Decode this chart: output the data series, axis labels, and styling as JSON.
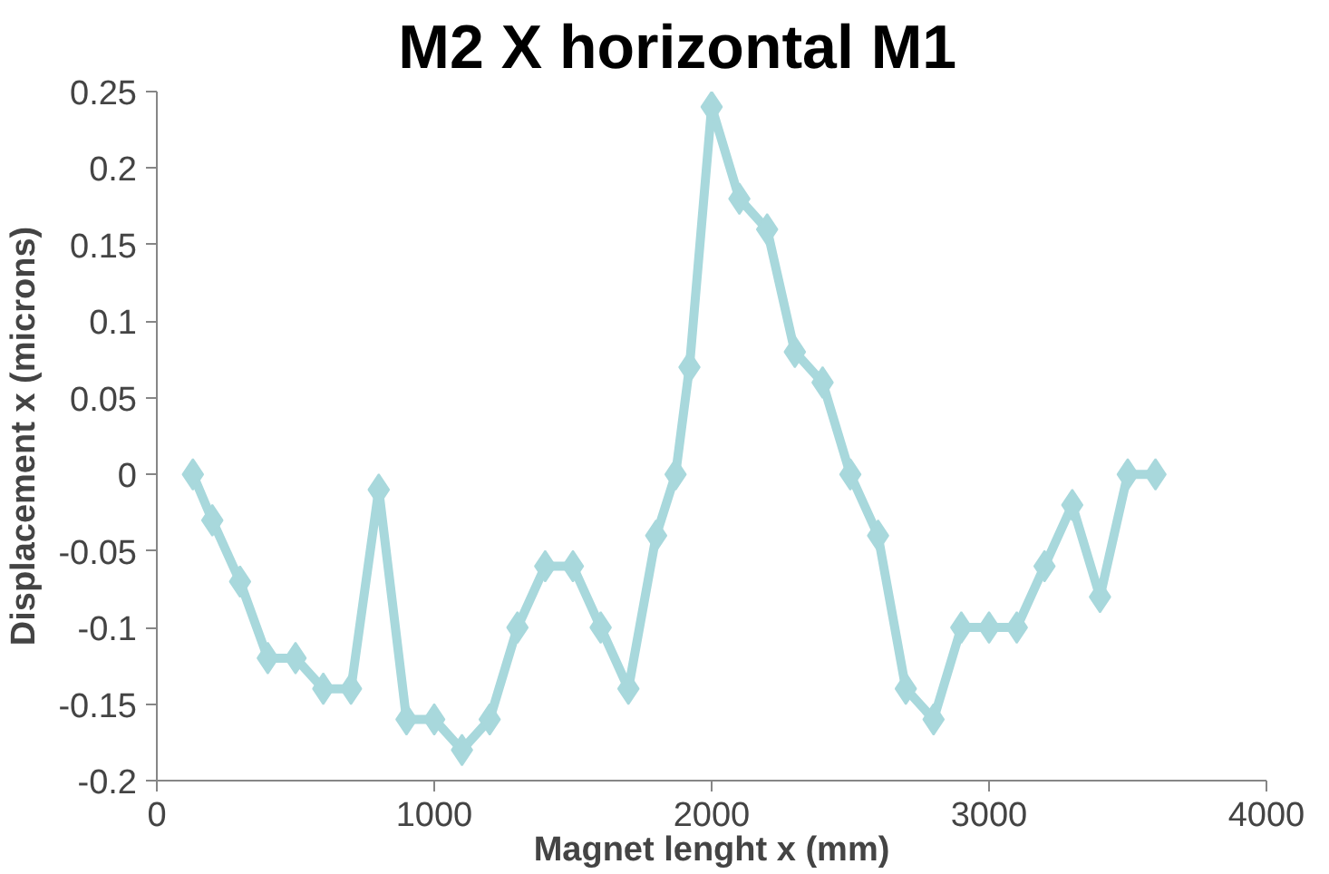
{
  "chart_data": {
    "type": "line",
    "title": "M2   X horizontal   M1",
    "xlabel": "Magnet lenght x (mm)",
    "ylabel": "Displacement x (microns)",
    "x": [
      130,
      200,
      300,
      400,
      500,
      600,
      700,
      800,
      900,
      1000,
      1100,
      1200,
      1300,
      1400,
      1500,
      1600,
      1700,
      1800,
      1870,
      1920,
      2000,
      2100,
      2200,
      2300,
      2400,
      2500,
      2600,
      2700,
      2800,
      2900,
      3000,
      3100,
      3200,
      3300,
      3400,
      3500,
      3600
    ],
    "series": [
      {
        "color": "#a8d8dc",
        "values": [
          0,
          -0.03,
          -0.07,
          -0.12,
          -0.12,
          -0.14,
          -0.14,
          -0.01,
          -0.16,
          -0.16,
          -0.18,
          -0.16,
          -0.1,
          -0.06,
          -0.06,
          -0.1,
          -0.14,
          -0.04,
          0,
          0.07,
          0.24,
          0.18,
          0.16,
          0.08,
          0.06,
          0,
          -0.04,
          -0.14,
          -0.16,
          -0.1,
          -0.1,
          -0.1,
          -0.06,
          -0.02,
          -0.08,
          0,
          0
        ]
      }
    ],
    "xlim": [
      0,
      4000
    ],
    "xticks": [
      0,
      1000,
      2000,
      3000,
      4000
    ],
    "ylim": [
      -0.2,
      0.25
    ],
    "yticks": [
      -0.2,
      -0.15,
      -0.1,
      -0.05,
      0,
      0.05,
      0.1,
      0.15,
      0.2,
      0.25
    ],
    "marker": "diamond",
    "line_style": "solid",
    "grid": false
  }
}
